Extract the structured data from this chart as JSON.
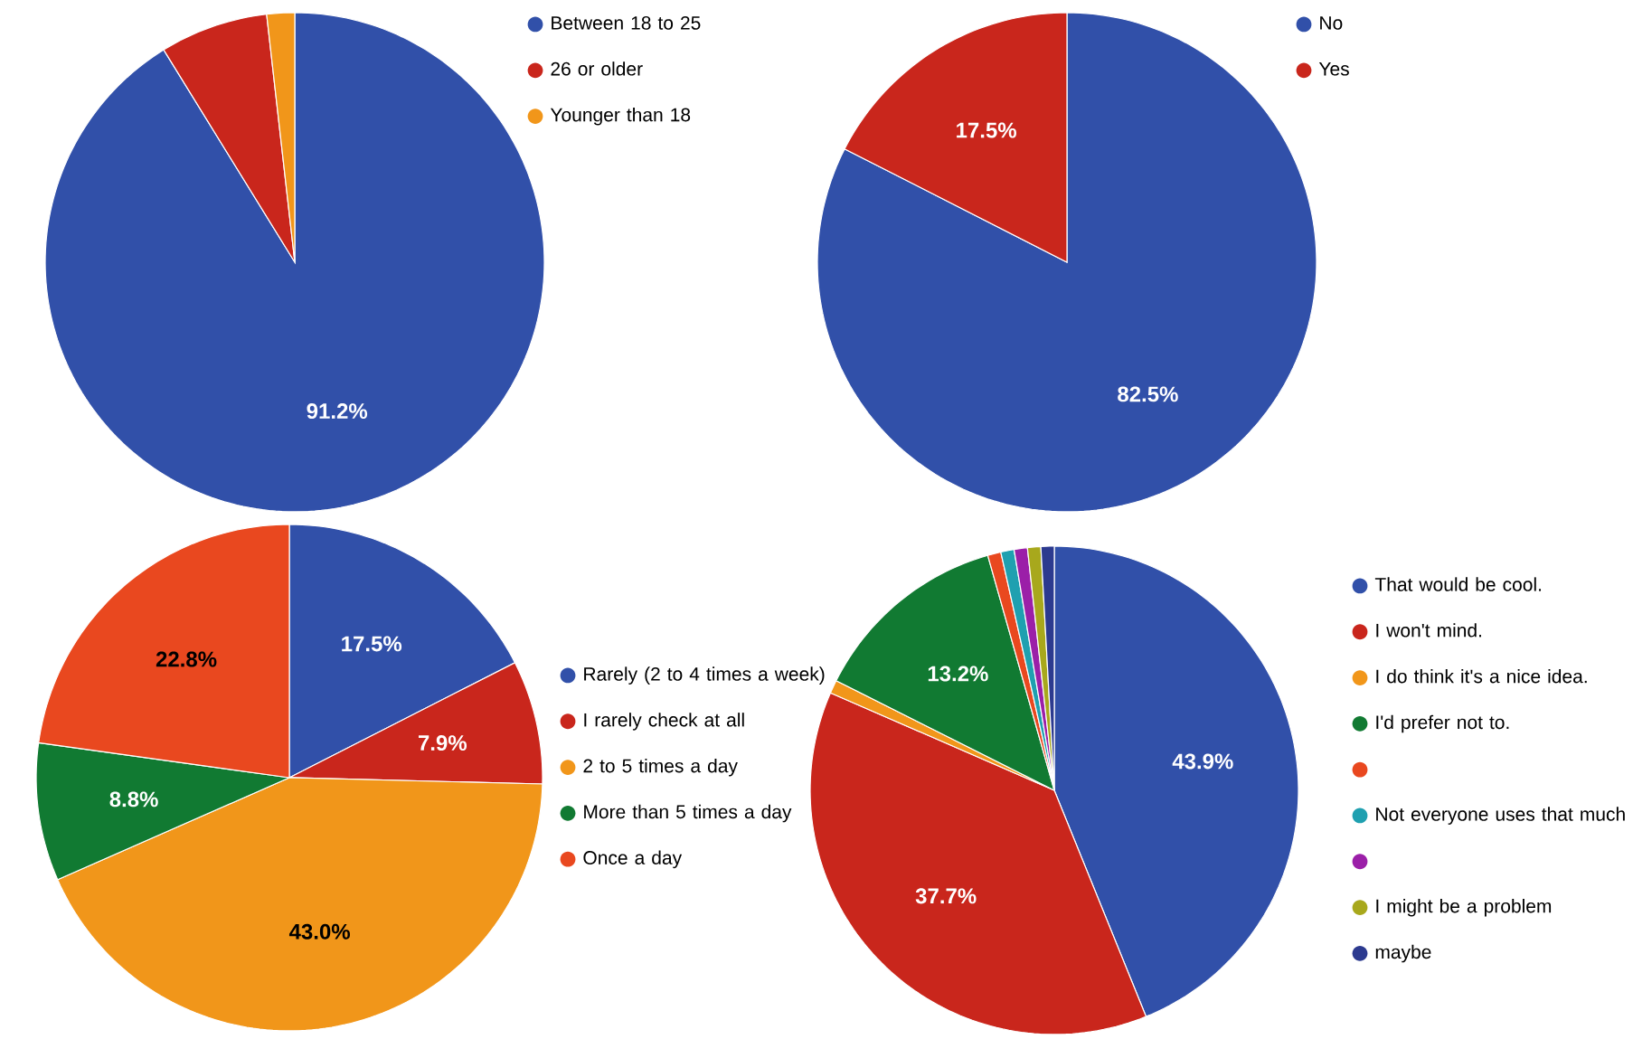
{
  "chart_data": [
    {
      "type": "pie",
      "categories": [
        "Between 18 to 25",
        "26 or older",
        "Younger than 18"
      ],
      "values": [
        91.2,
        7.0,
        1.8
      ],
      "colors": [
        "#3150a9",
        "#c9261c",
        "#f1961a"
      ],
      "value_labels": [
        "91.2%",
        null,
        null
      ],
      "legend": "top right"
    },
    {
      "type": "pie",
      "categories": [
        "No",
        "Yes"
      ],
      "values": [
        82.5,
        17.5
      ],
      "colors": [
        "#3150a9",
        "#c9261c"
      ],
      "value_labels": [
        "82.5%",
        "17.5%"
      ],
      "legend": "top right"
    },
    {
      "type": "pie",
      "categories": [
        "Rarely  (2 to 4 times a week)",
        "I rarely check at all",
        "2 to 5 times a day",
        "More than 5 times a day",
        "Once a day"
      ],
      "values": [
        17.5,
        7.9,
        43.0,
        8.8,
        22.8
      ],
      "colors": [
        "#3150a9",
        "#c9261c",
        "#f1961a",
        "#117a32",
        "#e9481f"
      ],
      "value_labels": [
        "17.5%",
        "7.9%",
        "43.0%",
        "8.8%",
        "22.8%"
      ],
      "legend": "right"
    },
    {
      "type": "pie",
      "categories": [
        "That would be cool.",
        "I won't mind.",
        "I do think it's a nice idea.",
        "I'd prefer not to.",
        null,
        "Not everyone uses that much",
        null,
        "I might be a problem",
        "maybe"
      ],
      "values": [
        43.9,
        37.7,
        0.88,
        13.2,
        0.88,
        0.88,
        0.88,
        0.88,
        0.88
      ],
      "colors": [
        "#3150a9",
        "#c9261c",
        "#f1961a",
        "#117a32",
        "#e9481f",
        "#1fa0b0",
        "#9b1fa8",
        "#a8a81c",
        "#2c3a8f"
      ],
      "value_labels": [
        "43.9%",
        "37.7%",
        null,
        "13.2%",
        null,
        null,
        null,
        null,
        null
      ],
      "legend": "right"
    }
  ]
}
